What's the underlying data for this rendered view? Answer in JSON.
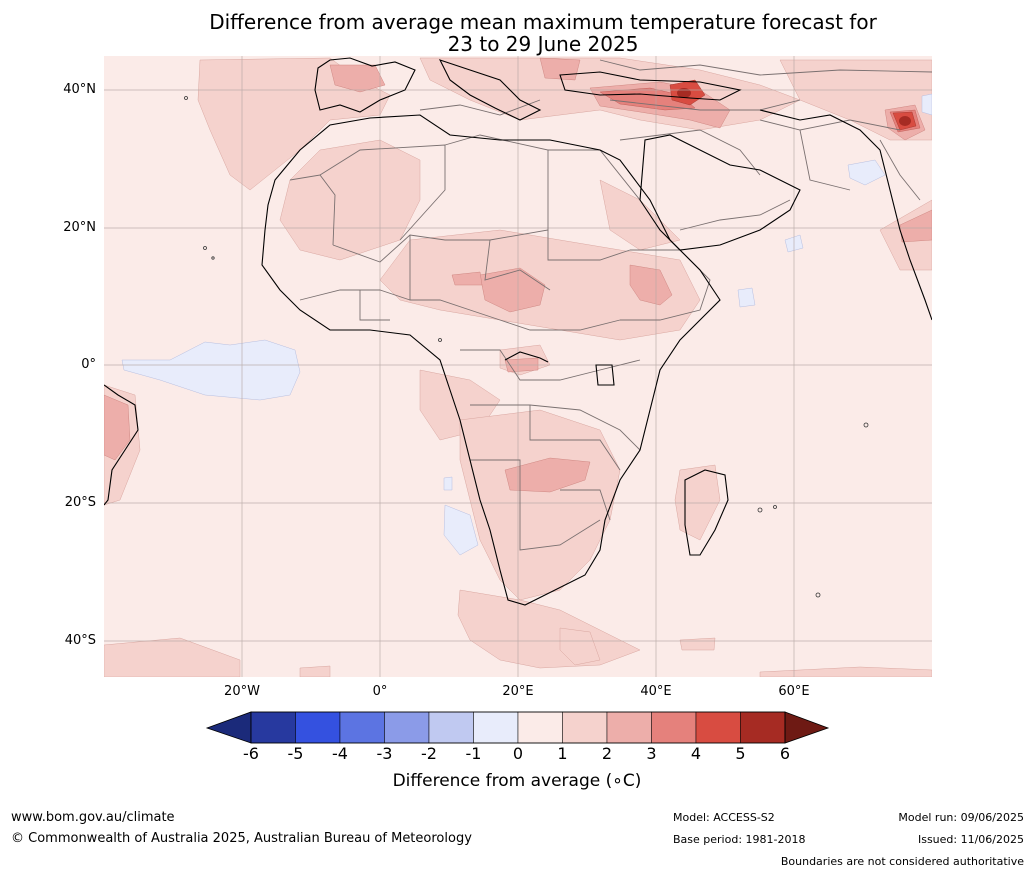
{
  "title": {
    "line1": "Difference from average mean maximum temperature forecast for",
    "line2": "23 to 29 June 2025"
  },
  "map": {
    "lat_labels": [
      "40°N",
      "20°N",
      "0°",
      "20°S",
      "40°S"
    ],
    "lon_labels": [
      "20°W",
      "0°",
      "20°E",
      "40°E",
      "60°E"
    ],
    "base_color": "#fbebe8"
  },
  "colorbar": {
    "label": "Difference from average (∘C)",
    "ticks": [
      "-6",
      "-5",
      "-4",
      "-3",
      "-2",
      "-1",
      "0",
      "1",
      "2",
      "3",
      "4",
      "5",
      "6"
    ],
    "under_color": "#1b2a7a",
    "over_color": "#6e1a14",
    "colors": [
      "#27399f",
      "#3451e0",
      "#5c74e2",
      "#8b9be8",
      "#c0c9f1",
      "#e8ecfb",
      "#fbebe8",
      "#f5d2cd",
      "#edaeaa",
      "#e5817c",
      "#d84c41",
      "#a62b23"
    ]
  },
  "footer": {
    "url": "www.bom.gov.au/climate",
    "copyright": "© Commonwealth of Australia 2025, Australian Bureau of Meteorology",
    "model": "Model: ACCESS-S2",
    "base_period": "Base period: 1981-2018",
    "model_run": "Model run: 09/06/2025",
    "issued": "Issued: 11/06/2025",
    "boundaries": "Boundaries are not considered authoritative"
  }
}
